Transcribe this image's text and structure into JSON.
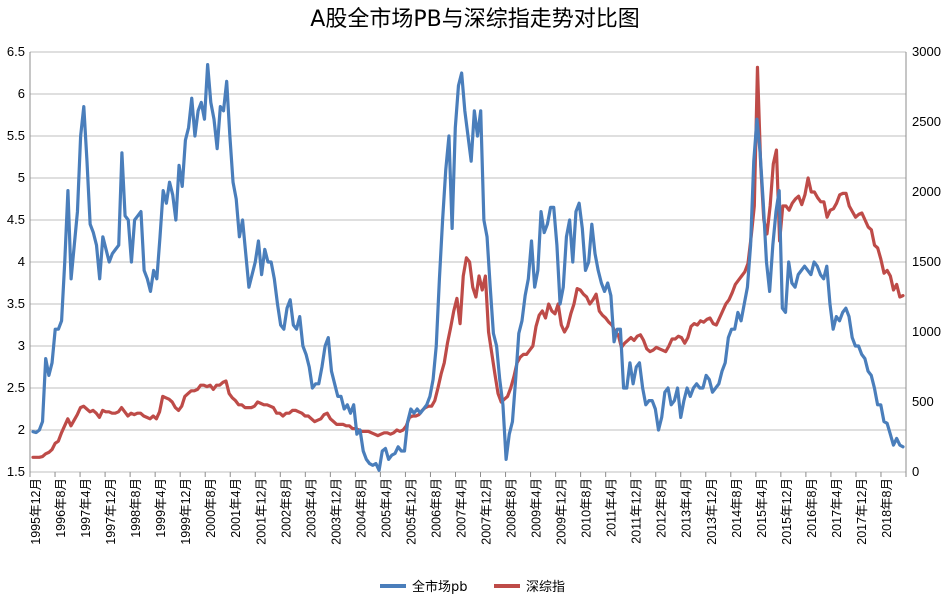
{
  "chart_data": {
    "type": "line",
    "title": "A股全市场PB与深综指走势对比图",
    "xlabel": "",
    "ylabel_left": "",
    "ylabel_right": "",
    "x_tick_labels": [
      "1995年12月",
      "1996年8月",
      "1997年4月",
      "1997年12月",
      "1998年8月",
      "1999年4月",
      "1999年12月",
      "2000年8月",
      "2001年4月",
      "2001年12月",
      "2002年8月",
      "2003年4月",
      "2003年12月",
      "2004年8月",
      "2005年4月",
      "2005年12月",
      "2006年8月",
      "2007年4月",
      "2007年12月",
      "2008年8月",
      "2009年4月",
      "2009年12月",
      "2010年8月",
      "2011年4月",
      "2011年12月",
      "2012年8月",
      "2013年4月",
      "2013年12月",
      "2014年8月",
      "2015年4月",
      "2015年12月",
      "2016年8月",
      "2017年4月",
      "2017年12月",
      "2018年8月"
    ],
    "ylim_left": [
      1.5,
      6.5
    ],
    "yticks_left": [
      "1.5",
      "2",
      "2.5",
      "3",
      "3.5",
      "4",
      "4.5",
      "5",
      "5.5",
      "6",
      "6.5"
    ],
    "ylim_right": [
      0,
      3000
    ],
    "yticks_right": [
      "0",
      "500",
      "1000",
      "1500",
      "2000",
      "2500",
      "3000"
    ],
    "grid": true,
    "legend_position": "bottom",
    "series": [
      {
        "name": "全市场pb",
        "axis": "left",
        "color": "#4a7ebb",
        "values": [
          1.98,
          1.97,
          2.0,
          2.1,
          2.85,
          2.65,
          2.8,
          3.2,
          3.2,
          3.3,
          4.0,
          4.85,
          3.8,
          4.2,
          4.6,
          5.5,
          5.85,
          5.2,
          4.45,
          4.35,
          4.2,
          3.8,
          4.3,
          4.15,
          4.0,
          4.1,
          4.15,
          4.2,
          5.3,
          4.55,
          4.5,
          4.0,
          4.5,
          4.55,
          4.6,
          3.9,
          3.8,
          3.65,
          3.9,
          3.8,
          4.3,
          4.85,
          4.7,
          4.95,
          4.8,
          4.5,
          5.15,
          4.9,
          5.45,
          5.6,
          5.95,
          5.5,
          5.8,
          5.9,
          5.7,
          6.35,
          5.9,
          5.7,
          5.35,
          5.85,
          5.8,
          6.15,
          5.5,
          4.95,
          4.75,
          4.3,
          4.5,
          4.1,
          3.7,
          3.85,
          4.0,
          4.25,
          3.85,
          4.15,
          4.0,
          4.0,
          3.8,
          3.5,
          3.25,
          3.2,
          3.45,
          3.55,
          3.25,
          3.2,
          3.35,
          3.0,
          2.9,
          2.75,
          2.5,
          2.55,
          2.55,
          2.75,
          3.0,
          3.1,
          2.7,
          2.55,
          2.4,
          2.4,
          2.25,
          2.3,
          2.2,
          2.3,
          1.95,
          2.0,
          1.75,
          1.65,
          1.6,
          1.58,
          1.6,
          1.52,
          1.75,
          1.78,
          1.65,
          1.7,
          1.72,
          1.8,
          1.75,
          1.75,
          2.1,
          2.25,
          2.2,
          2.25,
          2.2,
          2.25,
          2.3,
          2.4,
          2.6,
          3.0,
          3.8,
          4.5,
          5.1,
          5.5,
          4.4,
          5.6,
          6.1,
          6.25,
          5.8,
          5.5,
          5.2,
          5.8,
          5.5,
          5.8,
          4.5,
          4.3,
          3.7,
          3.15,
          3.0,
          2.6,
          2.3,
          1.65,
          1.95,
          2.1,
          2.6,
          3.15,
          3.3,
          3.6,
          3.8,
          4.25,
          3.7,
          3.9,
          4.6,
          4.35,
          4.45,
          4.65,
          4.65,
          4.2,
          3.5,
          3.7,
          4.3,
          4.5,
          4.0,
          4.6,
          4.7,
          4.4,
          3.9,
          4.0,
          4.45,
          4.1,
          3.9,
          3.75,
          3.65,
          3.75,
          3.6,
          3.05,
          3.2,
          3.2,
          2.5,
          2.5,
          2.8,
          2.55,
          2.75,
          2.8,
          2.5,
          2.3,
          2.35,
          2.35,
          2.25,
          2.0,
          2.15,
          2.45,
          2.5,
          2.3,
          2.35,
          2.5,
          2.15,
          2.35,
          2.5,
          2.4,
          2.5,
          2.55,
          2.5,
          2.5,
          2.65,
          2.6,
          2.45,
          2.5,
          2.55,
          2.7,
          2.8,
          3.1,
          3.2,
          3.2,
          3.4,
          3.3,
          3.5,
          3.7,
          4.2,
          5.2,
          5.7,
          5.3,
          4.7,
          4.0,
          3.65,
          4.2,
          4.6,
          4.85,
          3.45,
          3.4,
          4.0,
          3.75,
          3.7,
          3.85,
          3.9,
          3.95,
          3.9,
          3.85,
          4.0,
          3.95,
          3.85,
          3.8,
          3.95,
          3.5,
          3.2,
          3.35,
          3.3,
          3.4,
          3.45,
          3.35,
          3.1,
          3.0,
          3.0,
          2.9,
          2.85,
          2.7,
          2.65,
          2.5,
          2.3,
          2.3,
          2.1,
          2.08,
          1.95,
          1.82,
          1.9,
          1.82,
          1.8
        ]
      },
      {
        "name": "深综指",
        "axis": "right",
        "color": "#be4b48",
        "values": [
          105,
          105,
          105,
          110,
          130,
          140,
          160,
          205,
          220,
          280,
          330,
          380,
          330,
          370,
          410,
          460,
          470,
          450,
          430,
          440,
          420,
          390,
          440,
          430,
          430,
          420,
          420,
          430,
          460,
          430,
          400,
          420,
          410,
          420,
          420,
          400,
          390,
          380,
          400,
          380,
          430,
          540,
          530,
          520,
          500,
          460,
          440,
          470,
          540,
          560,
          580,
          580,
          590,
          620,
          620,
          610,
          620,
          590,
          620,
          620,
          640,
          650,
          560,
          530,
          510,
          480,
          480,
          460,
          460,
          460,
          470,
          500,
          490,
          480,
          480,
          470,
          460,
          420,
          420,
          400,
          420,
          420,
          440,
          440,
          430,
          420,
          400,
          400,
          380,
          360,
          370,
          380,
          410,
          420,
          380,
          360,
          340,
          340,
          340,
          330,
          330,
          310,
          310,
          300,
          290,
          290,
          290,
          280,
          270,
          260,
          270,
          280,
          280,
          270,
          280,
          300,
          290,
          300,
          330,
          390,
          400,
          400,
          410,
          440,
          460,
          470,
          470,
          510,
          600,
          700,
          780,
          920,
          1030,
          1150,
          1240,
          1060,
          1400,
          1530,
          1500,
          1320,
          1250,
          1400,
          1300,
          1400,
          1000,
          850,
          700,
          560,
          500,
          520,
          540,
          600,
          680,
          780,
          820,
          840,
          840,
          870,
          900,
          1040,
          1120,
          1150,
          1100,
          1200,
          1150,
          1130,
          1200,
          1050,
          1000,
          1040,
          1130,
          1200,
          1310,
          1300,
          1270,
          1250,
          1200,
          1230,
          1270,
          1150,
          1120,
          1100,
          1070,
          1050,
          1000,
          980,
          890,
          920,
          940,
          960,
          940,
          970,
          980,
          940,
          880,
          860,
          870,
          890,
          880,
          870,
          860,
          900,
          950,
          950,
          970,
          960,
          920,
          960,
          1040,
          1060,
          1050,
          1080,
          1070,
          1090,
          1100,
          1060,
          1050,
          1100,
          1150,
          1200,
          1230,
          1280,
          1340,
          1370,
          1400,
          1430,
          1490,
          1680,
          1900,
          2890,
          2200,
          1800,
          1700,
          1900,
          2200,
          2300,
          1650,
          1900,
          1900,
          1870,
          1920,
          1950,
          1970,
          1910,
          1980,
          2100,
          2000,
          2000,
          1960,
          1930,
          1930,
          1820,
          1870,
          1880,
          1920,
          1980,
          1990,
          1990,
          1900,
          1860,
          1820,
          1840,
          1850,
          1800,
          1750,
          1730,
          1620,
          1600,
          1520,
          1420,
          1440,
          1400,
          1300,
          1340,
          1250,
          1260
        ]
      }
    ]
  }
}
